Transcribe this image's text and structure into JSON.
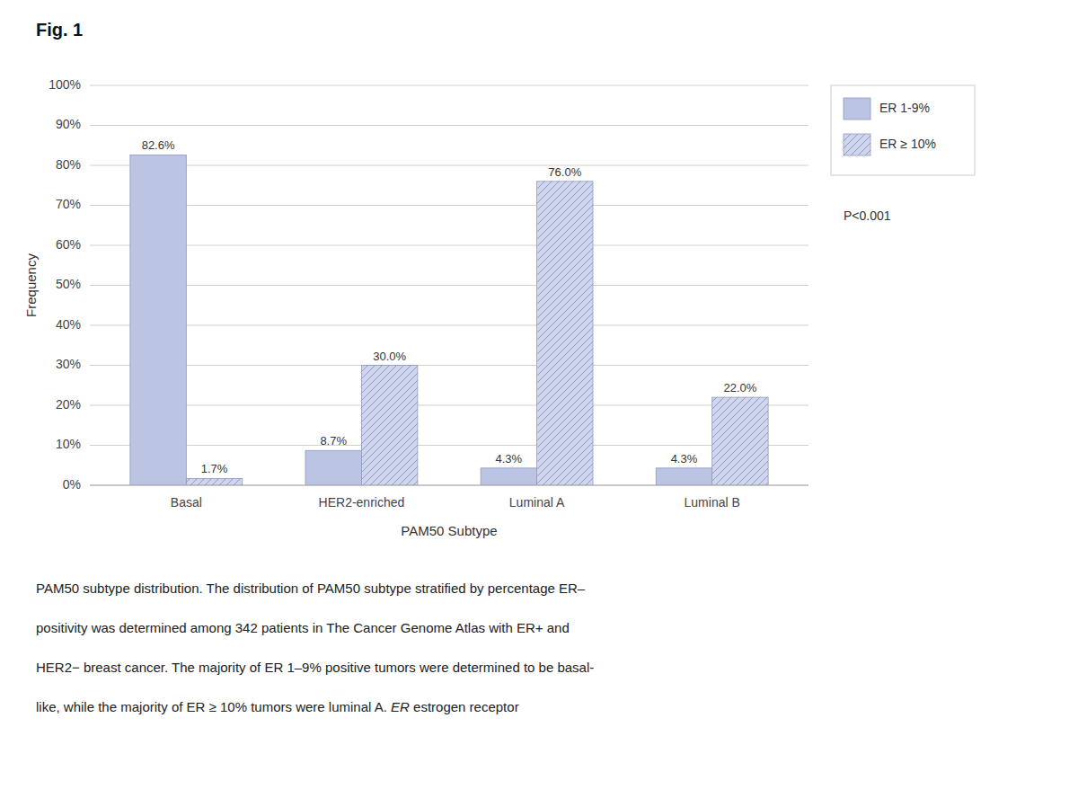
{
  "chart_data": {
    "type": "bar",
    "title": "Fig. 1",
    "xlabel": "PAM50 Subtype",
    "ylabel": "Frequency",
    "categories": [
      "Basal",
      "HER2-enriched",
      "Luminal A",
      "Luminal B"
    ],
    "series": [
      {
        "name": "ER 1-9%",
        "color": "#bcc4e4",
        "values": [
          82.6,
          8.7,
          4.3,
          4.3
        ],
        "value_labels": [
          "82.6%",
          "8.7%",
          "4.3%",
          "4.3%"
        ]
      },
      {
        "name": "ER ≥ 10%",
        "color": "#d0d6ee",
        "values": [
          1.7,
          30.0,
          76.0,
          22.0
        ],
        "value_labels": [
          "1.7%",
          "30.0%",
          "76.0%",
          "22.0%"
        ]
      }
    ],
    "ylim": [
      0,
      100
    ],
    "yticks": [
      {
        "value": 0,
        "label": "0%"
      },
      {
        "value": 10,
        "label": "10%"
      },
      {
        "value": 20,
        "label": "20%"
      },
      {
        "value": 30,
        "label": "30%"
      },
      {
        "value": 40,
        "label": "40%"
      },
      {
        "value": 50,
        "label": "50%"
      },
      {
        "value": 60,
        "label": "60%"
      },
      {
        "value": 70,
        "label": "70%"
      },
      {
        "value": 80,
        "label": "80%"
      },
      {
        "value": 90,
        "label": "90%"
      },
      {
        "value": 100,
        "label": "100%"
      }
    ],
    "grid": true,
    "legend": "right",
    "data_labels": true,
    "annotations": [
      "P<0.001"
    ],
    "caption": [
      "PAM50 subtype distribution. The distribution of PAM50 subtype stratified by percentage ER–",
      "positivity was determined among 342 patients in The Cancer Genome Atlas with ER+ and",
      "HER2− breast cancer. The majority of ER 1–9% positive tumors were determined to be basal-",
      "like, while the majority of ER ≥ 10% tumors were luminal A.  ER estrogen receptor"
    ]
  }
}
